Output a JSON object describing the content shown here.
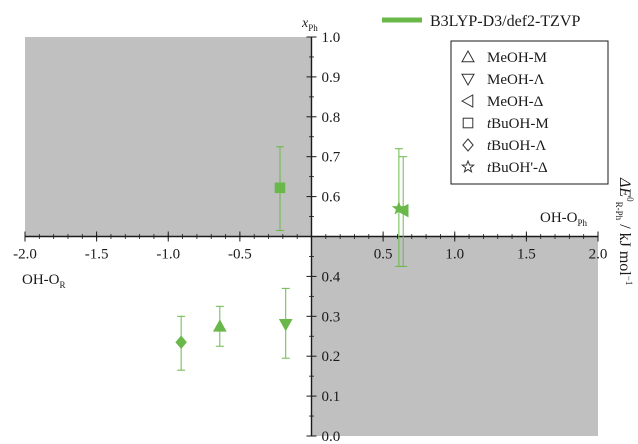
{
  "chart_data": {
    "type": "scatter",
    "x_axis": {
      "range": [
        -2.0,
        2.0
      ],
      "ticks": [
        "-2.0",
        "-1.5",
        "-1.0",
        "-0.5",
        "0.5",
        "1.0",
        "1.5",
        "2.0"
      ],
      "tick_values": [
        -2.0,
        -1.5,
        -1.0,
        -0.5,
        0.5,
        1.0,
        1.5,
        2.0
      ],
      "label_left": "OH-O",
      "label_left_sub": "R",
      "label_right": "OH-O",
      "label_right_sub": "Ph",
      "label_end": "ΔE",
      "label_end_sup": "0",
      "label_end_sub": "R-Ph",
      "label_end_unit": " / kJ mol",
      "label_end_unit_sup": "−1"
    },
    "y_axis": {
      "range": [
        0.0,
        1.0
      ],
      "ticks": [
        "0.0",
        "0.1",
        "0.2",
        "0.3",
        "0.4",
        "0.5",
        "0.6",
        "0.7",
        "0.8",
        "0.9",
        "1.0"
      ],
      "tick_values": [
        0.0,
        0.1,
        0.2,
        0.3,
        0.4,
        0.5,
        0.6,
        0.7,
        0.8,
        0.9,
        1.0
      ],
      "label": "x",
      "label_sub": "Ph"
    },
    "shaded_regions": [
      {
        "x": [
          -2.0,
          0.0
        ],
        "y": [
          0.5,
          1.0
        ]
      },
      {
        "x": [
          0.0,
          2.0
        ],
        "y": [
          0.0,
          0.5
        ]
      }
    ],
    "series_legend": {
      "name": "B3LYP-D3/def2-TZVP",
      "color": "#6ab84a"
    },
    "marker_legend": [
      {
        "symbol": "triangle-up",
        "prefix": "",
        "label": "MeOH-M"
      },
      {
        "symbol": "triangle-down",
        "prefix": "",
        "label": "MeOH-Λ"
      },
      {
        "symbol": "triangle-left",
        "prefix": "",
        "label": "MeOH-Δ"
      },
      {
        "symbol": "square",
        "prefix": "t",
        "label": "BuOH-M"
      },
      {
        "symbol": "diamond",
        "prefix": "t",
        "label": "BuOH-Λ"
      },
      {
        "symbol": "star",
        "prefix": "t",
        "label": "BuOH'-Δ"
      }
    ],
    "points": [
      {
        "label": "MeOH-M",
        "symbol": "triangle-up",
        "x": -0.64,
        "y": 0.275,
        "err_low": 0.225,
        "err_high": 0.325
      },
      {
        "label": "MeOH-Λ",
        "symbol": "triangle-down",
        "x": -0.18,
        "y": 0.28,
        "err_low": 0.195,
        "err_high": 0.37
      },
      {
        "label": "MeOH-Δ",
        "symbol": "triangle-left",
        "x": 0.64,
        "y": 0.565,
        "err_low": 0.425,
        "err_high": 0.7
      },
      {
        "label": "tBuOH-M",
        "symbol": "square",
        "x": -0.22,
        "y": 0.622,
        "err_low": 0.515,
        "err_high": 0.725
      },
      {
        "label": "tBuOH-Λ",
        "symbol": "diamond",
        "x": -0.91,
        "y": 0.235,
        "err_low": 0.165,
        "err_high": 0.3
      },
      {
        "label": "tBuOH'-Δ",
        "symbol": "star",
        "x": 0.61,
        "y": 0.57,
        "err_low": 0.425,
        "err_high": 0.72
      }
    ],
    "colors": {
      "marker": "#6ab84a",
      "shade": "#c0c0c0",
      "axis": "#1a1a1a"
    },
    "grid": false
  }
}
